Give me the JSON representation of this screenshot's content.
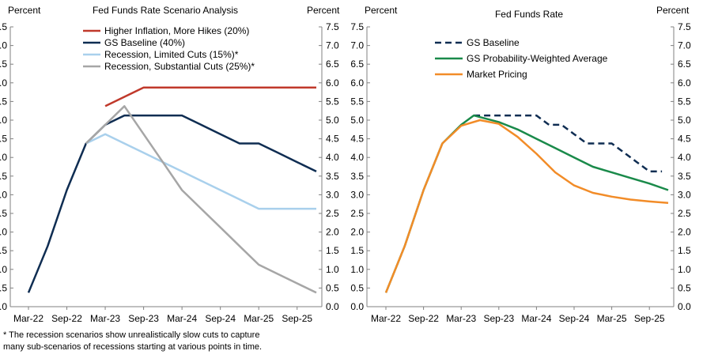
{
  "chart_data": [
    {
      "type": "line",
      "title": "Fed Funds Rate Scenario Analysis",
      "ylabel_left": "Percent",
      "ylabel_right": "Percent",
      "xlabel": "",
      "x_ticks": [
        "Mar-22",
        "Sep-22",
        "Mar-23",
        "Sep-23",
        "Mar-24",
        "Sep-24",
        "Mar-25",
        "Sep-25"
      ],
      "x_tick_positions": [
        0,
        6,
        12,
        18,
        24,
        30,
        36,
        42
      ],
      "xlim": [
        0,
        45
      ],
      "ylim": [
        0,
        7.5
      ],
      "y_ticks": [
        "0.0",
        "0.5",
        "1.0",
        "1.5",
        "2.0",
        "2.5",
        "3.0",
        "3.5",
        "4.0",
        "4.5",
        "5.0",
        "5.5",
        "6.0",
        "6.5",
        "7.0",
        "7.5"
      ],
      "grid": false,
      "legend": "top-center",
      "x_unit": "months since Mar-22",
      "series": [
        {
          "name": "Higher Inflation, More Hikes (20%)",
          "color": "#c0392b",
          "dash": false,
          "x": [
            12,
            15,
            18,
            21,
            24,
            27,
            30,
            33,
            36,
            39,
            42,
            45
          ],
          "y": [
            5.375,
            5.625,
            5.875,
            5.875,
            5.875,
            5.875,
            5.875,
            5.875,
            5.875,
            5.875,
            5.875,
            5.875
          ]
        },
        {
          "name": "GS Baseline (40%)",
          "color": "#0f2d52",
          "dash": false,
          "x": [
            0,
            3,
            6,
            9,
            12,
            15,
            18,
            21,
            24,
            27,
            30,
            33,
            36,
            39,
            42,
            45
          ],
          "y": [
            0.375,
            1.625,
            3.125,
            4.375,
            4.875,
            5.125,
            5.125,
            5.125,
            5.125,
            4.875,
            4.625,
            4.375,
            4.375,
            4.125,
            3.875,
            3.625
          ]
        },
        {
          "name": "Recession, Limited Cuts (15%)*",
          "color": "#a9d0ec",
          "dash": false,
          "x": [
            9,
            12,
            15,
            18,
            21,
            24,
            27,
            30,
            33,
            36,
            39,
            42,
            45
          ],
          "y": [
            4.375,
            4.625,
            4.375,
            4.125,
            3.875,
            3.625,
            3.375,
            3.125,
            2.875,
            2.625,
            2.625,
            2.625,
            2.625
          ]
        },
        {
          "name": "Recession, Substantial Cuts (25%)*",
          "color": "#a6a6a6",
          "dash": false,
          "x": [
            9,
            12,
            15,
            18,
            21,
            24,
            27,
            30,
            33,
            36,
            39,
            42,
            45
          ],
          "y": [
            4.375,
            4.875,
            5.375,
            4.625,
            3.875,
            3.125,
            2.625,
            2.125,
            1.625,
            1.125,
            0.875,
            0.625,
            0.375
          ]
        }
      ]
    },
    {
      "type": "line",
      "title": "Fed Funds Rate",
      "ylabel_left": "Percent",
      "ylabel_right": "Percent",
      "xlabel": "",
      "x_ticks": [
        "Mar-22",
        "Sep-22",
        "Mar-23",
        "Sep-23",
        "Mar-24",
        "Sep-24",
        "Mar-25",
        "Sep-25"
      ],
      "x_tick_positions": [
        0,
        6,
        12,
        18,
        24,
        30,
        36,
        42
      ],
      "xlim": [
        0,
        45
      ],
      "ylim": [
        0,
        7.5
      ],
      "y_ticks": [
        "0.0",
        "0.5",
        "1.0",
        "1.5",
        "2.0",
        "2.5",
        "3.0",
        "3.5",
        "4.0",
        "4.5",
        "5.0",
        "5.5",
        "6.0",
        "6.5",
        "7.0",
        "7.5"
      ],
      "grid": false,
      "legend": "top-center",
      "x_unit": "months since Mar-22",
      "series": [
        {
          "name": "GS Baseline",
          "color": "#0f2d52",
          "dash": true,
          "x": [
            14,
            16,
            18,
            20,
            22,
            24,
            26,
            28,
            30,
            32,
            34,
            36,
            38,
            40,
            42,
            44
          ],
          "y": [
            5.125,
            5.125,
            5.125,
            5.125,
            5.125,
            5.125,
            4.875,
            4.875,
            4.625,
            4.375,
            4.375,
            4.375,
            4.125,
            3.875,
            3.625,
            3.625
          ]
        },
        {
          "name": "GS Probability-Weighted Average",
          "color": "#1a8a4a",
          "dash": false,
          "x": [
            0,
            3,
            6,
            9,
            12,
            14,
            18,
            21,
            24,
            27,
            30,
            33,
            36,
            39,
            42,
            45
          ],
          "y": [
            0.375,
            1.625,
            3.125,
            4.375,
            4.875,
            5.125,
            4.95,
            4.75,
            4.5,
            4.25,
            4.0,
            3.75,
            3.6,
            3.45,
            3.3,
            3.125
          ]
        },
        {
          "name": "Market Pricing",
          "color": "#f28c28",
          "dash": false,
          "x": [
            0,
            3,
            6,
            9,
            12,
            15,
            18,
            21,
            24,
            27,
            30,
            33,
            36,
            39,
            42,
            45
          ],
          "y": [
            0.375,
            1.625,
            3.125,
            4.375,
            4.85,
            5.0,
            4.9,
            4.55,
            4.1,
            3.6,
            3.25,
            3.05,
            2.95,
            2.87,
            2.82,
            2.78
          ]
        }
      ]
    }
  ],
  "footnote": {
    "line1": "* The recession scenarios show unrealistically slow cuts to capture",
    "line2": "many sub-scenarios of recessions starting at various points in time."
  }
}
